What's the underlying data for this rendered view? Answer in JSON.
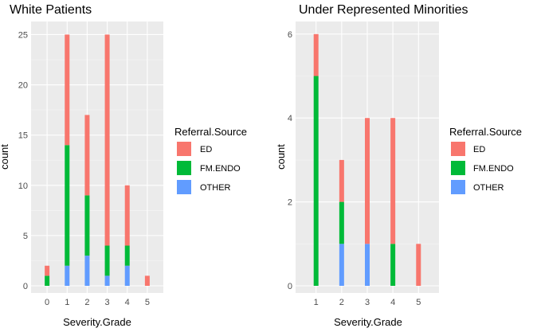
{
  "chart_data": [
    {
      "type": "bar",
      "stacked": true,
      "title": "White Patients",
      "xlabel": "Severity.Grade",
      "ylabel": "count",
      "categories": [
        "0",
        "1",
        "2",
        "3",
        "4",
        "5"
      ],
      "ylim": [
        0,
        26.3
      ],
      "yticks": [
        0,
        5,
        10,
        15,
        20,
        25
      ],
      "series": [
        {
          "name": "OTHER",
          "color": "#619CFF",
          "values": [
            0,
            2,
            3,
            1,
            2,
            0
          ]
        },
        {
          "name": "FM.ENDO",
          "color": "#00BA38",
          "values": [
            1,
            12,
            6,
            3,
            2,
            0
          ]
        },
        {
          "name": "ED",
          "color": "#F8766D",
          "values": [
            1,
            11,
            8,
            21,
            6,
            1
          ]
        }
      ],
      "legend": {
        "title": "Referral.Source",
        "items": [
          "ED",
          "FM.ENDO",
          "OTHER"
        ],
        "position": "right"
      }
    },
    {
      "type": "bar",
      "stacked": true,
      "title": "Under Represented Minorities",
      "xlabel": "Severity.Grade",
      "ylabel": "count",
      "categories": [
        "1",
        "2",
        "3",
        "4",
        "5"
      ],
      "ylim": [
        0,
        6.3
      ],
      "yticks": [
        0,
        2,
        4,
        6
      ],
      "series": [
        {
          "name": "OTHER",
          "color": "#619CFF",
          "values": [
            0,
            1,
            1,
            0,
            0
          ]
        },
        {
          "name": "FM.ENDO",
          "color": "#00BA38",
          "values": [
            5,
            1,
            0,
            1,
            0
          ]
        },
        {
          "name": "ED",
          "color": "#F8766D",
          "values": [
            1,
            1,
            3,
            3,
            1
          ]
        }
      ],
      "legend": {
        "title": "Referral.Source",
        "items": [
          "ED",
          "FM.ENDO",
          "OTHER"
        ],
        "position": "right"
      }
    }
  ]
}
